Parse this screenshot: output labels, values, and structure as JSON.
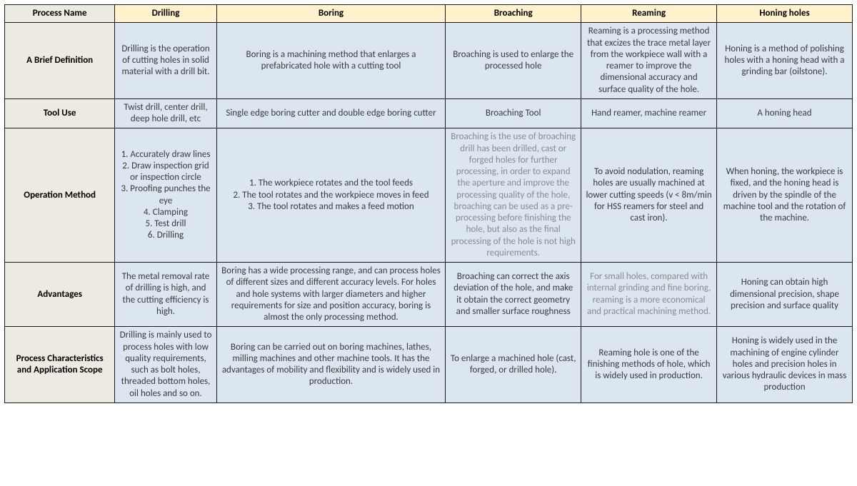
{
  "colors": {
    "border": "#1a1a1a",
    "header_row_bg": "#fff2cc",
    "row_label_bg": "#eceae1",
    "data_bg": "#dce6f1",
    "text": "#3b3b3b",
    "faded_text": "#8a8a8a"
  },
  "columns": [
    "Process Name",
    "Drilling",
    "Boring",
    "Broaching",
    "Reaming",
    "Honing holes"
  ],
  "rows": [
    {
      "label": "A Brief Definition",
      "cells": [
        "Drilling is the operation of cutting holes in solid material with a drill bit.",
        "Boring is a machining method that enlarges a prefabricated hole with a cutting tool",
        "Broaching is used to enlarge the processed hole",
        "Reaming is a processing method that excizes the trace metal layer from the workpiece wall with a reamer to improve the dimensional accuracy and surface quality of the hole.",
        "Honing is a method of polishing holes with a honing head with a grinding bar (oilstone)."
      ]
    },
    {
      "label": "Tool Use",
      "cells": [
        "Twist drill, center drill, deep hole drill, etc",
        "Single edge boring cutter and double edge boring cutter",
        "Broaching Tool",
        "Hand reamer, machine reamer",
        "A honing head"
      ]
    },
    {
      "label": "Operation Method",
      "cells": [
        "1. Accurately draw lines\n2. Draw inspection grid or inspection circle\n3. Proofing punches the eye\n4. Clamping\n5. Test drill\n6. Drilling",
        "1. The workpiece rotates and the tool feeds\n2. The tool rotates and the workpiece moves in feed\n3. The tool rotates and makes a feed motion",
        "Broaching is the use of broaching drill has been drilled, cast or forged holes for further processing, in order to expand the aperture and improve the processing quality of the hole, broaching can be used as a pre-processing before finishing the hole, but also as the final processing of the hole is not high requirements.",
        "To avoid nodulation, reaming holes are usually machined at lower cutting speeds (v < 8m/min for HSS reamers for steel and cast iron).",
        "When honing, the workpiece is fixed, and the honing head is driven by the spindle of the machine tool and the rotation of the machine."
      ],
      "faded": [
        2
      ]
    },
    {
      "label": "Advantages",
      "cells": [
        "The metal removal rate of drilling is high, and the cutting efficiency is high.",
        "Boring has a wide processing range, and can process holes of different sizes and different accuracy levels. For holes and hole systems with larger diameters and higher requirements for size and position accuracy, boring is almost the only processing method.",
        "Broaching can correct the axis deviation of the hole, and make it obtain the correct geometry and smaller surface roughness",
        "For small holes, compared with internal grinding and fine boring, reaming is a more economical and practical machining method.",
        "Honing can obtain high dimensional precision, shape precision and surface quality"
      ],
      "faded": [
        3
      ]
    },
    {
      "label": "Process Characteristics and Application Scope",
      "cells": [
        "Drilling is mainly used to process holes with low quality requirements, such as bolt holes, threaded bottom holes, oil holes and so on.",
        "Boring can be carried out on boring machines, lathes, milling machines and other machine tools. It has the advantages of mobility and flexibility and is widely used in production.",
        "To enlarge a machined hole (cast, forged, or drilled hole).",
        "Reaming hole is one of the finishing methods of hole, which is widely used in production.",
        "Honing is widely used in the machining of engine cylinder holes and precision holes in various hydraulic devices in mass production"
      ]
    }
  ]
}
